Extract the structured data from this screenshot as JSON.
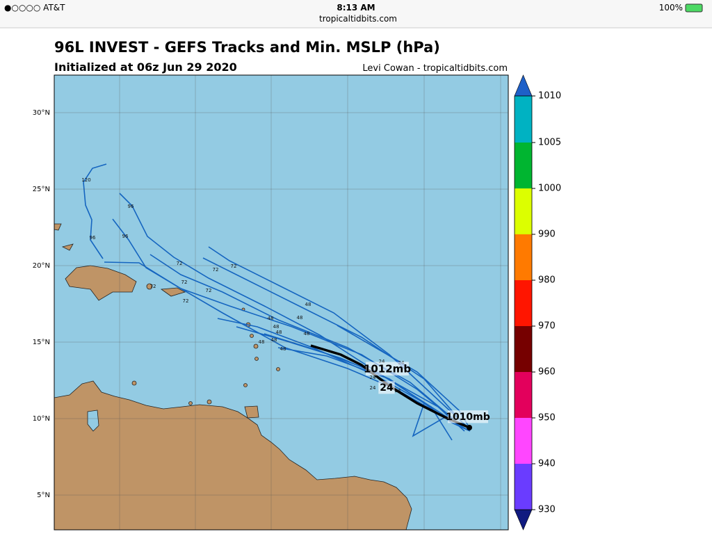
{
  "status_bar": {
    "carrier": "●○○○○ AT&T",
    "time": "8:13 AM",
    "url": "tropicaltidbits.com",
    "battery": "100%"
  },
  "map": {
    "title": "96L INVEST - GEFS Tracks and Min. MSLP (hPa)",
    "subtitle": "Initialized at 06z Jun 29 2020",
    "credit": "Levi Cowan - tropicaltidbits.com",
    "lat_labels": [
      "30°N",
      "25°N",
      "20°N",
      "15°N",
      "10°N",
      "5°N"
    ],
    "colorbar_labels": [
      1010,
      1005,
      1000,
      990,
      980,
      970,
      960,
      950,
      940,
      930
    ],
    "track_labels": [
      "120",
      "96",
      "96",
      "96",
      "72",
      "72",
      "72",
      "72",
      "72",
      "72",
      "72",
      "48",
      "48",
      "48",
      "48",
      "48",
      "48",
      "48",
      "48",
      "48",
      "24",
      "24",
      "24",
      "24",
      "24"
    ],
    "annotations": [
      "1012mb",
      "1010mb",
      "24"
    ]
  }
}
